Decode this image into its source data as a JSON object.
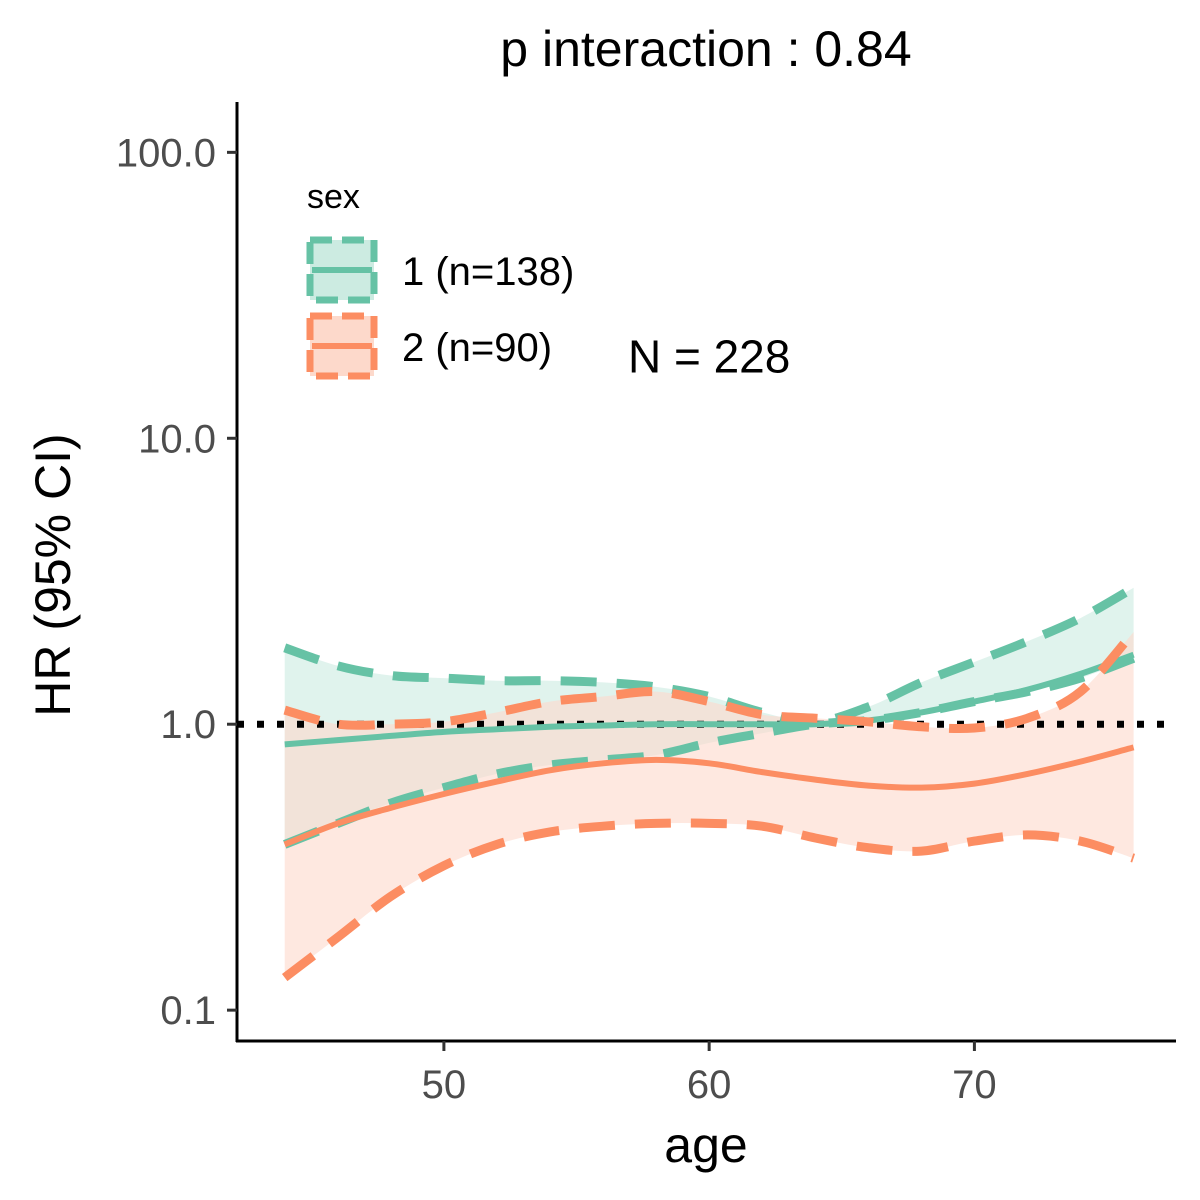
{
  "chart_data": {
    "type": "line",
    "title": "p interaction : 0.84",
    "xlabel": "age",
    "ylabel": "HR (95% CI)",
    "xlim": [
      42.2,
      77.6
    ],
    "ylim": [
      0.078,
      150
    ],
    "yscale": "log",
    "xticks": [
      50,
      60,
      70
    ],
    "xtick_labels": [
      "50",
      "60",
      "70"
    ],
    "yticks": [
      0.1,
      1,
      10,
      100
    ],
    "ytick_labels": [
      "0.1",
      "1.0",
      "10.0",
      "100.0"
    ],
    "reference_line": {
      "y": 1,
      "style": "dotted",
      "color": "#000000"
    },
    "annotation": {
      "text": "N = 228",
      "x": 60,
      "y": 17
    },
    "legend": {
      "title": "sex",
      "position": "top-left"
    },
    "x": [
      44,
      46,
      48,
      50,
      52,
      54,
      56,
      58,
      60,
      62,
      64,
      66,
      68,
      70,
      72,
      74,
      76
    ],
    "series": [
      {
        "name": "1 (n=138)",
        "color": "#66c2a5",
        "fill": "#ccebe1",
        "hr": [
          0.85,
          0.88,
          0.91,
          0.94,
          0.96,
          0.98,
          0.99,
          1.0,
          1.0,
          1.0,
          1.0,
          1.03,
          1.1,
          1.2,
          1.32,
          1.5,
          1.75
        ],
        "lower": [
          0.38,
          0.45,
          0.53,
          0.6,
          0.67,
          0.72,
          0.75,
          0.78,
          0.86,
          0.93,
          1.0,
          1.03,
          1.1,
          1.2,
          1.3,
          1.45,
          1.7
        ],
        "upper": [
          1.85,
          1.6,
          1.48,
          1.45,
          1.42,
          1.42,
          1.4,
          1.35,
          1.25,
          1.1,
          1.02,
          1.15,
          1.4,
          1.65,
          1.95,
          2.35,
          3.0
        ]
      },
      {
        "name": "2 (n=90)",
        "color": "#fc8d62",
        "fill": "#fdd9cb",
        "hr": [
          0.38,
          0.45,
          0.51,
          0.57,
          0.63,
          0.69,
          0.73,
          0.75,
          0.73,
          0.68,
          0.64,
          0.61,
          0.6,
          0.62,
          0.67,
          0.74,
          0.83
        ],
        "lower": [
          0.13,
          0.18,
          0.25,
          0.32,
          0.38,
          0.42,
          0.44,
          0.45,
          0.45,
          0.44,
          0.4,
          0.37,
          0.36,
          0.39,
          0.41,
          0.39,
          0.34
        ],
        "upper": [
          1.12,
          1.0,
          1.0,
          1.02,
          1.1,
          1.2,
          1.25,
          1.3,
          1.2,
          1.08,
          1.05,
          1.02,
          0.98,
          0.97,
          1.05,
          1.3,
          2.1
        ]
      }
    ]
  }
}
